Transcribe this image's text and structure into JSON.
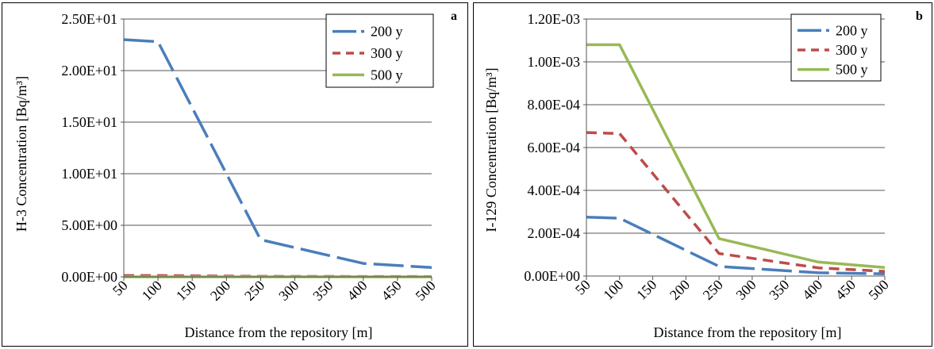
{
  "chart_data": [
    {
      "type": "line",
      "panel_label": "a",
      "x": [
        50,
        100,
        250,
        400,
        500
      ],
      "xticks": [
        "50",
        "100",
        "150",
        "200",
        "250",
        "300",
        "350",
        "400",
        "450",
        "500"
      ],
      "xlabel": "Distance from the repository  [m]",
      "ylabel": "H-3 Concentration  [Bq/m³]",
      "ylim": [
        0,
        25
      ],
      "yticks": [
        {
          "value": 0,
          "label": "0.00E+00"
        },
        {
          "value": 5,
          "label": "5.00E+00"
        },
        {
          "value": 10,
          "label": "1.00E+01"
        },
        {
          "value": 15,
          "label": "1.50E+01"
        },
        {
          "value": 20,
          "label": "2.00E+01"
        },
        {
          "value": 25,
          "label": "2.50E+01"
        }
      ],
      "grid": "horizontal",
      "legend_position": "top-right",
      "series": [
        {
          "name": "200 y",
          "color": "#4a7ebb",
          "dash": "long-dash",
          "values": [
            23.0,
            22.8,
            3.6,
            1.3,
            0.9
          ]
        },
        {
          "name": "300 y",
          "color": "#be4b48",
          "dash": "dash",
          "values": [
            0.12,
            0.12,
            0.05,
            0.03,
            0.02
          ]
        },
        {
          "name": "500 y",
          "color": "#98b954",
          "dash": "solid",
          "values": [
            0.0,
            0.0,
            0.0,
            0.0,
            0.0
          ]
        }
      ]
    },
    {
      "type": "line",
      "panel_label": "b",
      "x": [
        50,
        100,
        250,
        400,
        500
      ],
      "xticks": [
        "50",
        "100",
        "150",
        "200",
        "250",
        "300",
        "350",
        "400",
        "450",
        "500"
      ],
      "xlabel": "Distance from the repository  [m]",
      "ylabel": "I-129 Concentration  [Bq/m³]",
      "ylim": [
        0,
        0.0012
      ],
      "yticks": [
        {
          "value": 0,
          "label": "0.00E+00"
        },
        {
          "value": 0.0002,
          "label": "2.00E-04"
        },
        {
          "value": 0.0004,
          "label": "4.00E-04"
        },
        {
          "value": 0.0006,
          "label": "6.00E-04"
        },
        {
          "value": 0.0008,
          "label": "8.00E-04"
        },
        {
          "value": 0.001,
          "label": "1.00E-03"
        },
        {
          "value": 0.0012,
          "label": "1.20E-03"
        }
      ],
      "grid": "horizontal",
      "legend_position": "top-right",
      "series": [
        {
          "name": "200 y",
          "color": "#4a7ebb",
          "dash": "long-dash",
          "values": [
            0.000275,
            0.00027,
            4.5e-05,
            1.5e-05,
            1e-05
          ]
        },
        {
          "name": "300 y",
          "color": "#be4b48",
          "dash": "dash",
          "values": [
            0.00067,
            0.000665,
            0.000105,
            3.8e-05,
            2.2e-05
          ]
        },
        {
          "name": "500 y",
          "color": "#98b954",
          "dash": "solid",
          "values": [
            0.00108,
            0.00108,
            0.000175,
            6.5e-05,
            4e-05
          ]
        }
      ]
    }
  ]
}
